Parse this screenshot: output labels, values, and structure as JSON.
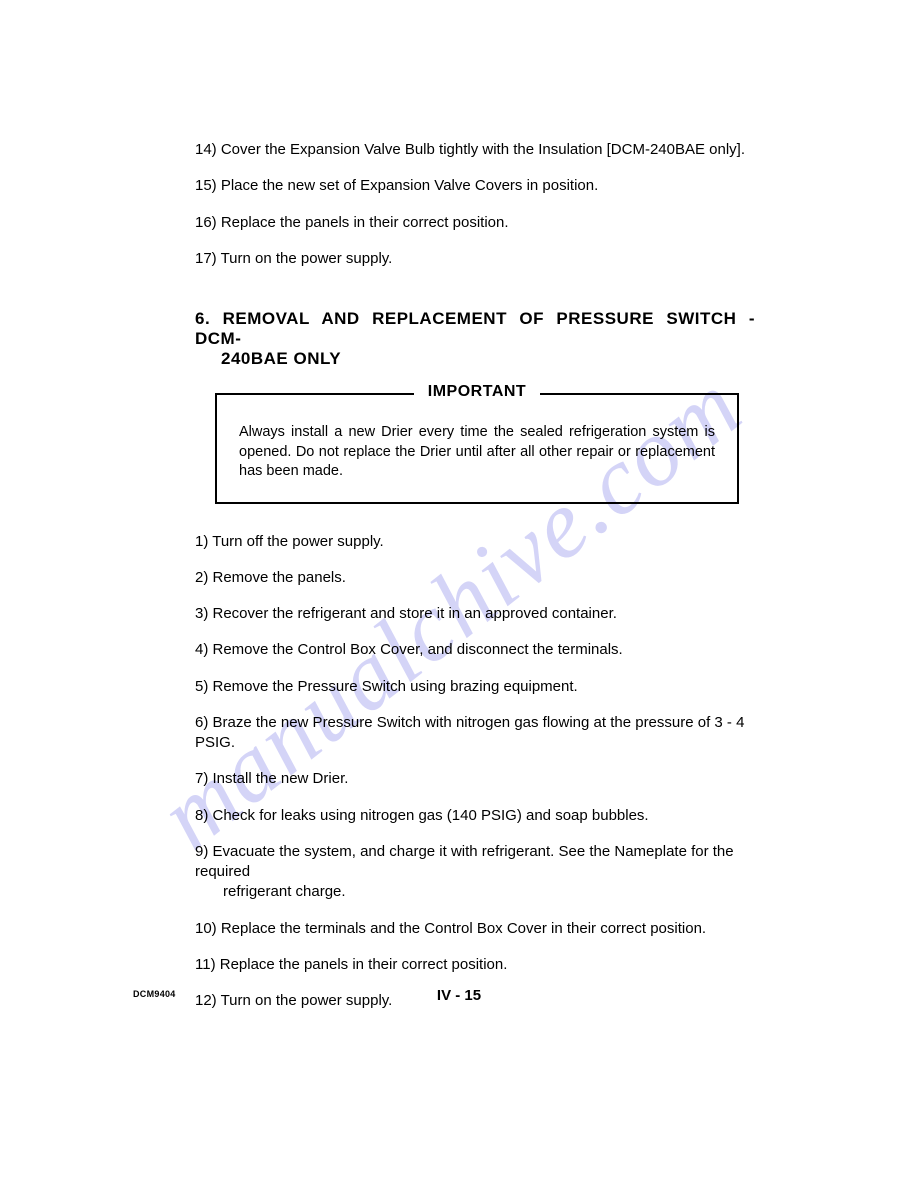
{
  "top_steps": [
    {
      "num": "14)",
      "text": "Cover the Expansion Valve Bulb tightly with the Insulation [DCM-240BAE only]."
    },
    {
      "num": "15)",
      "text": "Place the new set of Expansion Valve Covers in position."
    },
    {
      "num": "16)",
      "text": "Replace the panels in their correct position."
    },
    {
      "num": "17)",
      "text": "Turn on the power supply."
    }
  ],
  "heading": {
    "num": "6.",
    "line1": "REMOVAL AND REPLACEMENT OF PRESSURE SWITCH - DCM-",
    "line2": "240BAE ONLY"
  },
  "notice": {
    "title": "IMPORTANT",
    "body": "Always install a new Drier every time the sealed refrigeration system is opened. Do not replace the Drier until after all other repair or replacement has been made."
  },
  "bottom_steps": [
    {
      "num": "1)",
      "text": "Turn off the power supply."
    },
    {
      "num": "2)",
      "text": "Remove the panels."
    },
    {
      "num": "3)",
      "text": "Recover the refrigerant and store it in an approved container."
    },
    {
      "num": "4)",
      "text": "Remove the Control Box Cover, and disconnect the terminals."
    },
    {
      "num": "5)",
      "text": "Remove the Pressure Switch using brazing equipment."
    },
    {
      "num": "6)",
      "text": "Braze the new Pressure Switch with nitrogen gas flowing at the pressure of 3 - 4 PSIG."
    },
    {
      "num": "7)",
      "text": "Install the new Drier."
    },
    {
      "num": "8)",
      "text": "Check for leaks using nitrogen gas (140 PSIG) and soap bubbles."
    },
    {
      "num": "9)",
      "text": "Evacuate the system, and charge it with refrigerant.  See the Nameplate for the required",
      "cont": "refrigerant charge."
    },
    {
      "num": "10)",
      "text": "Replace the terminals and the Control Box Cover in their correct position."
    },
    {
      "num": "11)",
      "text": "Replace the panels in their correct position."
    },
    {
      "num": "12)",
      "text": "Turn on the power supply."
    }
  ],
  "footer": {
    "code": "DCM9404",
    "page": "IV - 15"
  },
  "watermark": "manualchive.com"
}
